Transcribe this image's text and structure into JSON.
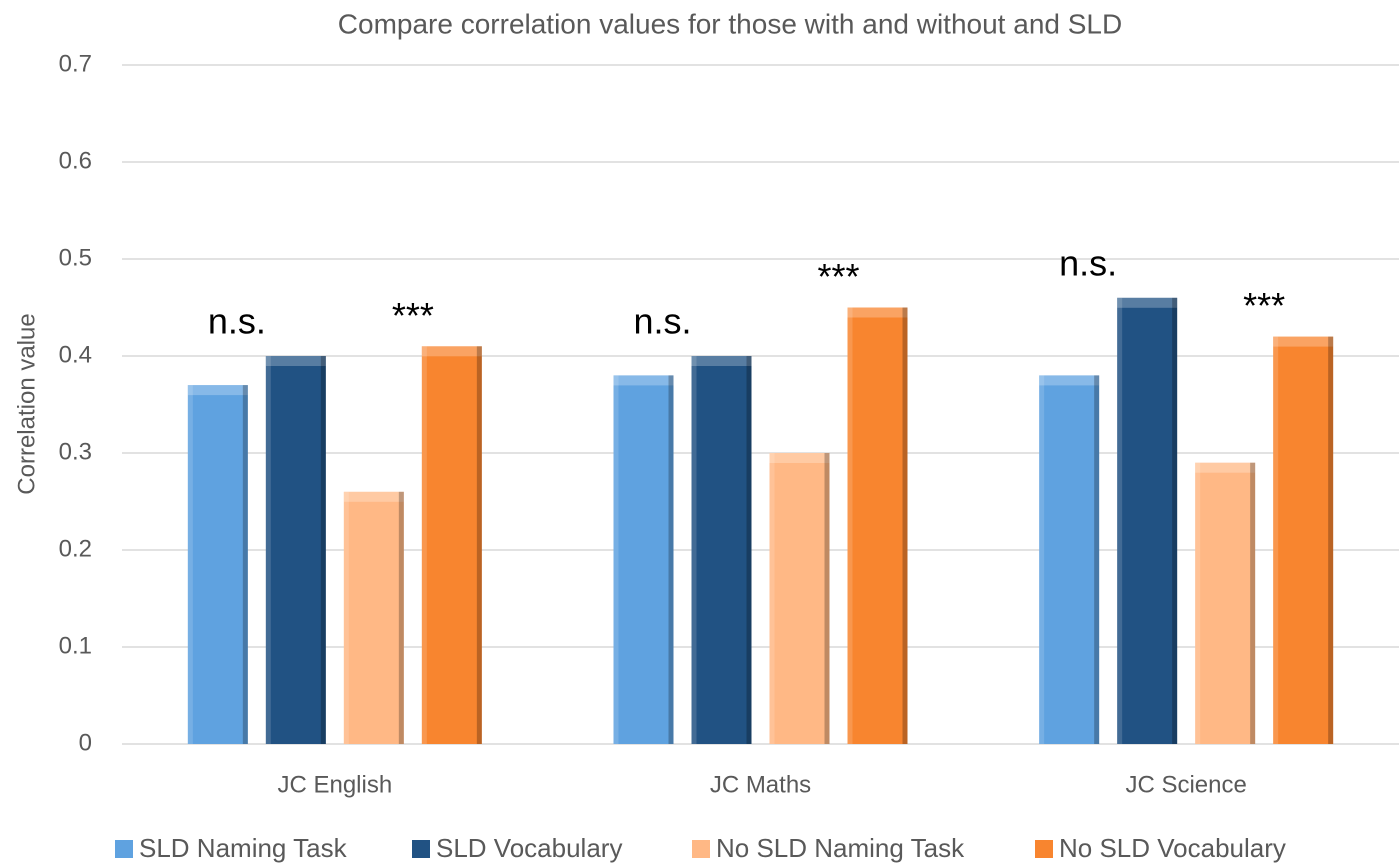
{
  "chart_data": {
    "type": "bar",
    "title": "Compare correlation values for those with and without and SLD",
    "y_label": "Correlation value",
    "categories": [
      "JC English",
      "JC Maths",
      "JC Science"
    ],
    "series": [
      {
        "name": "SLD Naming Task",
        "color": "#5fa2e0",
        "values": [
          0.37,
          0.38,
          0.38
        ]
      },
      {
        "name": "SLD Vocabulary",
        "color": "#215283",
        "values": [
          0.4,
          0.4,
          0.46
        ]
      },
      {
        "name": "No SLD Naming Task",
        "color": "#ffb885",
        "values": [
          0.26,
          0.3,
          0.29
        ]
      },
      {
        "name": "No SLD Vocabulary",
        "color": "#f8852f",
        "values": [
          0.41,
          0.45,
          0.42
        ]
      }
    ],
    "annotations": [
      "n.s.",
      "***",
      "n.s.",
      "***",
      "n.s.",
      "***"
    ],
    "ylim": [
      0,
      0.7
    ],
    "yticks": [
      0,
      0.1,
      0.2,
      0.3,
      0.4,
      0.5,
      0.6,
      0.7
    ],
    "grid": true,
    "legend": "bottom"
  }
}
